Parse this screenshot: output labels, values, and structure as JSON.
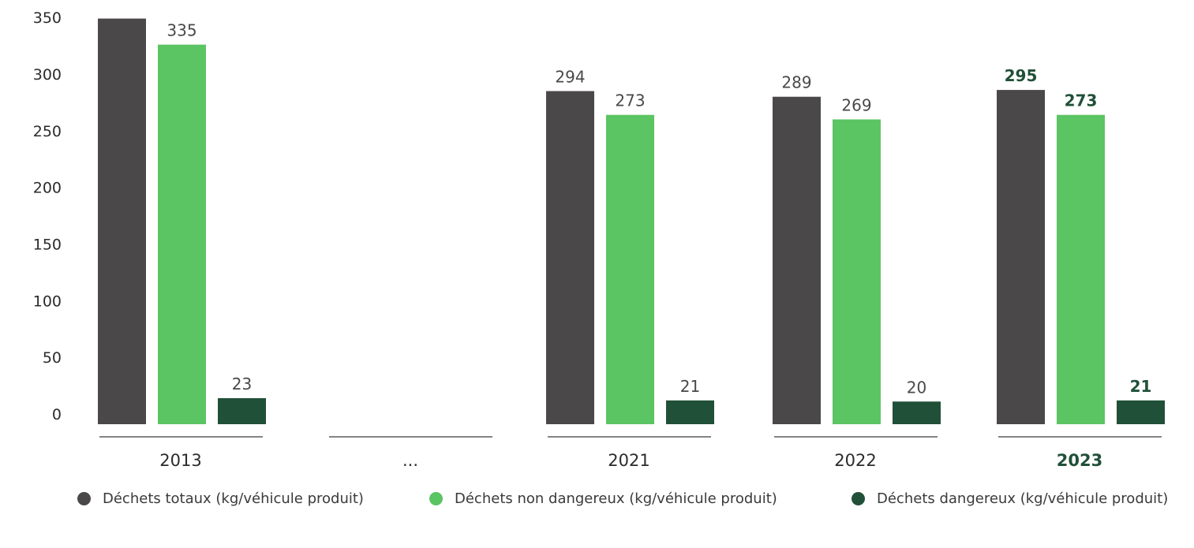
{
  "chart_data": {
    "type": "bar",
    "title": "",
    "xlabel": "",
    "ylabel": "",
    "ylim": [
      0,
      350
    ],
    "yticks": [
      0,
      50,
      100,
      150,
      200,
      250,
      300,
      350
    ],
    "grid": false,
    "legend_position": "bottom",
    "categories": [
      "2013",
      "...",
      "2021",
      "2022",
      "2023"
    ],
    "highlight_category": "2023",
    "series": [
      {
        "name": "Déchets totaux (kg/véhicule produit)",
        "color": "#4a4849",
        "values": [
          358,
          null,
          294,
          289,
          295
        ],
        "labels": [
          "",
          "",
          "294",
          "289",
          "295"
        ]
      },
      {
        "name": "Déchets non dangereux (kg/véhicule produit)",
        "color": "#5bc463",
        "values": [
          335,
          null,
          273,
          269,
          273
        ],
        "labels": [
          "335",
          "",
          "273",
          "269",
          "273"
        ]
      },
      {
        "name": "Déchets dangereux (kg/véhicule produit)",
        "color": "#215038",
        "values": [
          23,
          null,
          21,
          20,
          21
        ],
        "labels": [
          "23",
          "",
          "21",
          "20",
          "21"
        ]
      }
    ],
    "highlight_color": "#215038"
  }
}
